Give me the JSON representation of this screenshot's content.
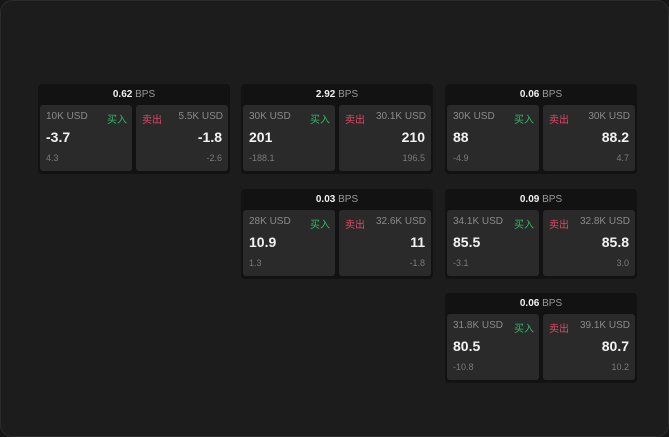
{
  "buy_label": "买入",
  "sell_label": "卖出",
  "unit": "BPS",
  "colors": {
    "buy": "#2fb865",
    "sell": "#e0456a"
  },
  "cards": [
    {
      "spread": "0.62",
      "buy": {
        "size": "10K USD",
        "price": "-3.7",
        "change": "4.3"
      },
      "sell": {
        "size": "5.5K USD",
        "price": "-1.8",
        "change": "-2.6"
      }
    },
    {
      "spread": "2.92",
      "buy": {
        "size": "30K USD",
        "price": "201",
        "change": "-188.1"
      },
      "sell": {
        "size": "30.1K USD",
        "price": "210",
        "change": "196.5"
      }
    },
    {
      "spread": "0.06",
      "buy": {
        "size": "30K USD",
        "price": "88",
        "change": "-4.9"
      },
      "sell": {
        "size": "30K USD",
        "price": "88.2",
        "change": "4.7"
      }
    },
    {
      "spread": "0.03",
      "buy": {
        "size": "28K USD",
        "price": "10.9",
        "change": "1.3"
      },
      "sell": {
        "size": "32.6K USD",
        "price": "11",
        "change": "-1.8"
      }
    },
    {
      "spread": "0.09",
      "buy": {
        "size": "34.1K USD",
        "price": "85.5",
        "change": "-3.1"
      },
      "sell": {
        "size": "32.8K USD",
        "price": "85.8",
        "change": "3.0"
      }
    },
    {
      "spread": "0.06",
      "buy": {
        "size": "31.8K USD",
        "price": "80.5",
        "change": "-10.8"
      },
      "sell": {
        "size": "39.1K USD",
        "price": "80.7",
        "change": "10.2"
      }
    }
  ]
}
